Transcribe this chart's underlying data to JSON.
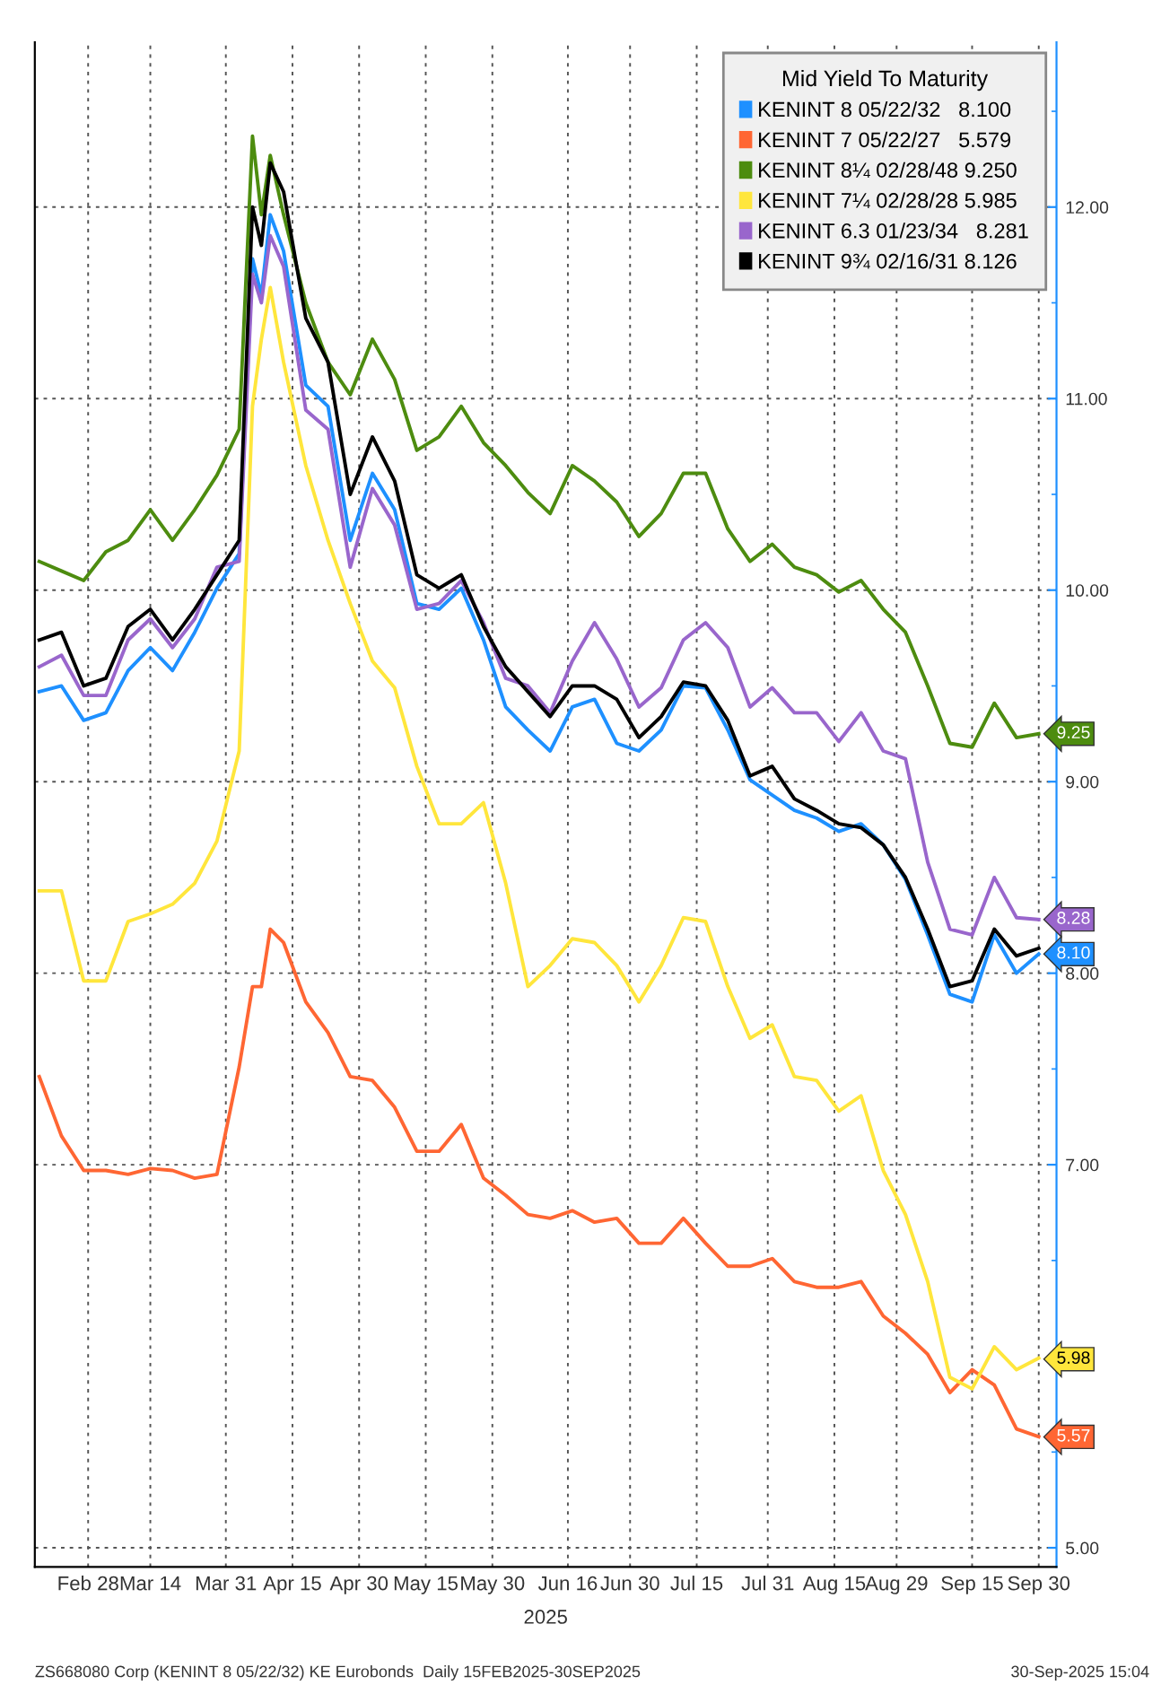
{
  "chart_data": {
    "type": "line",
    "legend_title": "Mid Yield To Maturity",
    "xlabel": "2025",
    "x": [
      "2025-02-17",
      "2025-02-22",
      "2025-02-27",
      "2025-03-04",
      "2025-03-09",
      "2025-03-14",
      "2025-03-19",
      "2025-03-24",
      "2025-03-29",
      "2025-04-03",
      "2025-04-06",
      "2025-04-08",
      "2025-04-10",
      "2025-04-13",
      "2025-04-18",
      "2025-04-23",
      "2025-04-28",
      "2025-05-03",
      "2025-05-08",
      "2025-05-13",
      "2025-05-18",
      "2025-05-23",
      "2025-05-28",
      "2025-06-02",
      "2025-06-07",
      "2025-06-12",
      "2025-06-17",
      "2025-06-22",
      "2025-06-27",
      "2025-07-02",
      "2025-07-07",
      "2025-07-12",
      "2025-07-17",
      "2025-07-22",
      "2025-07-27",
      "2025-08-01",
      "2025-08-06",
      "2025-08-11",
      "2025-08-16",
      "2025-08-21",
      "2025-08-26",
      "2025-08-31",
      "2025-09-05",
      "2025-09-10",
      "2025-09-15",
      "2025-09-20",
      "2025-09-25",
      "2025-09-30"
    ],
    "series": [
      {
        "name": "KENINT 8 05/22/32   8.100",
        "color": "#1e90ff",
        "values": [
          9.47,
          9.5,
          9.32,
          9.36,
          9.58,
          9.7,
          9.58,
          9.78,
          10.01,
          10.19,
          11.73,
          11.54,
          11.96,
          11.77,
          11.07,
          10.96,
          10.26,
          10.61,
          10.42,
          9.93,
          9.9,
          10.01,
          9.74,
          9.39,
          9.27,
          9.16,
          9.39,
          9.43,
          9.2,
          9.16,
          9.27,
          9.5,
          9.49,
          9.27,
          9.01,
          8.93,
          8.85,
          8.81,
          8.74,
          8.78,
          8.67,
          8.49,
          8.2,
          7.89,
          7.85,
          8.2,
          8.0,
          8.1
        ]
      },
      {
        "name": "KENINT 7 05/22/27   5.579",
        "color": "#ff6633",
        "values": [
          7.46,
          7.15,
          6.97,
          6.97,
          6.95,
          6.98,
          6.97,
          6.93,
          6.95,
          7.51,
          7.93,
          7.93,
          8.23,
          8.16,
          7.85,
          7.69,
          7.46,
          7.44,
          7.3,
          7.07,
          7.07,
          7.21,
          6.93,
          6.84,
          6.74,
          6.72,
          6.76,
          6.7,
          6.72,
          6.59,
          6.59,
          6.72,
          6.59,
          6.47,
          6.47,
          6.51,
          6.39,
          6.36,
          6.36,
          6.39,
          6.21,
          6.12,
          6.01,
          5.81,
          5.93,
          5.85,
          5.62,
          5.58
        ]
      },
      {
        "name": "KENINT 8¼ 02/28/48 9.250",
        "color": "#4d8c0f",
        "values": [
          10.15,
          10.1,
          10.05,
          10.2,
          10.26,
          10.42,
          10.26,
          10.42,
          10.6,
          10.84,
          12.37,
          11.96,
          12.27,
          11.96,
          11.5,
          11.19,
          11.02,
          11.31,
          11.1,
          10.73,
          10.8,
          10.96,
          10.77,
          10.65,
          10.51,
          10.4,
          10.65,
          10.57,
          10.46,
          10.28,
          10.4,
          10.61,
          10.61,
          10.32,
          10.15,
          10.24,
          10.12,
          10.08,
          9.99,
          10.05,
          9.9,
          9.78,
          9.5,
          9.2,
          9.18,
          9.41,
          9.23,
          9.25
        ]
      },
      {
        "name": "KENINT 7¼ 02/28/28 5.985",
        "color": "#ffe63c",
        "values": [
          8.43,
          8.43,
          7.96,
          7.96,
          8.27,
          8.31,
          8.36,
          8.47,
          8.69,
          9.16,
          10.96,
          11.31,
          11.58,
          11.19,
          10.65,
          10.26,
          9.93,
          9.63,
          9.49,
          9.08,
          8.78,
          8.78,
          8.89,
          8.47,
          7.93,
          8.04,
          8.18,
          8.16,
          8.04,
          7.85,
          8.04,
          8.29,
          8.27,
          7.93,
          7.66,
          7.73,
          7.46,
          7.44,
          7.28,
          7.36,
          6.97,
          6.74,
          6.39,
          5.89,
          5.83,
          6.05,
          5.93,
          5.99
        ]
      },
      {
        "name": "KENINT 6.3 01/23/34   8.281",
        "color": "#9966cc",
        "values": [
          9.6,
          9.66,
          9.45,
          9.45,
          9.74,
          9.85,
          9.7,
          9.85,
          10.12,
          10.15,
          11.65,
          11.5,
          11.85,
          11.69,
          10.94,
          10.84,
          10.12,
          10.53,
          10.34,
          9.9,
          9.93,
          10.05,
          9.83,
          9.54,
          9.5,
          9.36,
          9.63,
          9.83,
          9.64,
          9.39,
          9.49,
          9.74,
          9.83,
          9.7,
          9.39,
          9.49,
          9.36,
          9.36,
          9.21,
          9.36,
          9.16,
          9.12,
          8.58,
          8.23,
          8.2,
          8.5,
          8.29,
          8.28
        ]
      },
      {
        "name": "KENINT 9¾ 02/16/31 8.126",
        "color": "#000000",
        "values": [
          9.74,
          9.78,
          9.5,
          9.54,
          9.81,
          9.9,
          9.74,
          9.9,
          10.08,
          10.26,
          12.0,
          11.8,
          12.23,
          12.08,
          11.42,
          11.19,
          10.5,
          10.8,
          10.57,
          10.08,
          10.01,
          10.08,
          9.81,
          9.6,
          9.47,
          9.34,
          9.5,
          9.5,
          9.43,
          9.23,
          9.34,
          9.52,
          9.5,
          9.32,
          9.03,
          9.08,
          8.91,
          8.85,
          8.78,
          8.76,
          8.67,
          8.5,
          8.23,
          7.93,
          7.96,
          8.23,
          8.09,
          8.13
        ]
      }
    ],
    "xlim": [
      "2025-02-16",
      "2025-10-04"
    ],
    "xticks": [
      {
        "value": "2025-02-28",
        "label": "Feb 28"
      },
      {
        "value": "2025-03-14",
        "label": "Mar 14"
      },
      {
        "value": "2025-03-31",
        "label": "Mar 31"
      },
      {
        "value": "2025-04-15",
        "label": "Apr 15"
      },
      {
        "value": "2025-04-30",
        "label": "Apr 30"
      },
      {
        "value": "2025-05-15",
        "label": "May 15"
      },
      {
        "value": "2025-05-30",
        "label": "May 30"
      },
      {
        "value": "2025-06-16",
        "label": "Jun 16"
      },
      {
        "value": "2025-06-30",
        "label": "Jun 30"
      },
      {
        "value": "2025-07-15",
        "label": "Jul 15"
      },
      {
        "value": "2025-07-31",
        "label": "Jul 31"
      },
      {
        "value": "2025-08-15",
        "label": "Aug 15"
      },
      {
        "value": "2025-08-29",
        "label": "Aug 29"
      },
      {
        "value": "2025-09-15",
        "label": "Sep 15"
      },
      {
        "value": "2025-09-30",
        "label": "Sep 30"
      }
    ],
    "ylim": [
      4.9,
      12.86
    ],
    "yticks": [
      {
        "value": 5,
        "label": "5.00"
      },
      {
        "value": 5.5,
        "label": null
      },
      {
        "value": 6,
        "label": null
      },
      {
        "value": 6.5,
        "label": null
      },
      {
        "value": 7,
        "label": "7.00"
      },
      {
        "value": 7.5,
        "label": null
      },
      {
        "value": 8,
        "label": "8.00"
      },
      {
        "value": 8.5,
        "label": null
      },
      {
        "value": 9,
        "label": "9.00"
      },
      {
        "value": 9.5,
        "label": null
      },
      {
        "value": 10,
        "label": "10.00"
      },
      {
        "value": 10.5,
        "label": null
      },
      {
        "value": 11,
        "label": "11.00"
      },
      {
        "value": 11.5,
        "label": null
      },
      {
        "value": 12,
        "label": "12.00"
      },
      {
        "value": 12.5,
        "label": null
      }
    ],
    "grid": true,
    "legend": "top right",
    "line_style": "solid",
    "annotations": [
      {
        "text": "9.25",
        "x": "2025-09-30",
        "y": 9.25
      },
      {
        "text": "8.28",
        "x": "2025-09-30",
        "y": 8.281
      },
      {
        "text": "8.10",
        "x": "2025-09-30",
        "y": 8.1
      },
      {
        "text": "5.98",
        "x": "2025-09-30",
        "y": 5.985
      },
      {
        "text": "5.57",
        "x": "2025-09-30",
        "y": 5.579
      },
      "ZS668080 Corp (KENINT 8 05/22/32) KE Eurobonds  Daily 15FEB2025-30SEP2025",
      "30-Sep-2025 15:04"
    ]
  }
}
